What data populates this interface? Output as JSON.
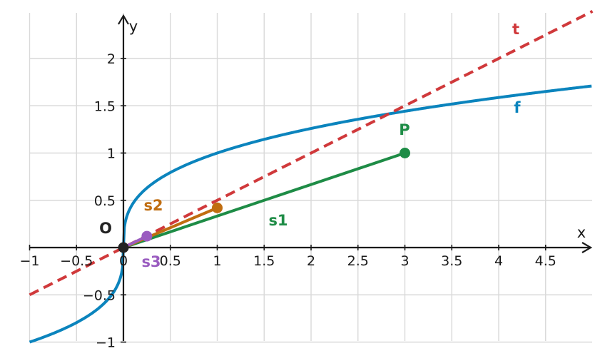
{
  "axes": {
    "x_label": "x",
    "y_label": "y",
    "x_ticks": [
      {
        "value": -1,
        "label": "−1"
      },
      {
        "value": -0.5,
        "label": "−0.5"
      },
      {
        "value": 0,
        "label": "0"
      },
      {
        "value": 0.5,
        "label": "0.5"
      },
      {
        "value": 1,
        "label": "1"
      },
      {
        "value": 1.5,
        "label": "1.5"
      },
      {
        "value": 2,
        "label": "2"
      },
      {
        "value": 2.5,
        "label": "2.5"
      },
      {
        "value": 3,
        "label": "3"
      },
      {
        "value": 3.5,
        "label": "3.5"
      },
      {
        "value": 4,
        "label": "4"
      },
      {
        "value": 4.5,
        "label": "4.5"
      }
    ],
    "y_ticks": [
      {
        "value": -1,
        "label": "−1"
      },
      {
        "value": -0.5,
        "label": "−0.5"
      },
      {
        "value": 0.5,
        "label": "0.5"
      },
      {
        "value": 1,
        "label": "1"
      },
      {
        "value": 1.5,
        "label": "1.5"
      },
      {
        "value": 2,
        "label": "2"
      }
    ],
    "x_range": [
      -1,
      5
    ],
    "y_range": [
      -1,
      2.5
    ],
    "grid": true
  },
  "curve_f": {
    "label": "f",
    "color": "#0b84bd",
    "function": "cube root of x"
  },
  "tangent_t": {
    "label": "t",
    "color": "#d0393b",
    "slope": 0.5,
    "intercept": 0,
    "style": "dashed"
  },
  "secants": [
    {
      "label": "s1",
      "color": "#1e8c46",
      "from": [
        0,
        0
      ],
      "to": [
        3,
        1
      ]
    },
    {
      "label": "s2",
      "color": "#c06d10",
      "from": [
        0,
        0
      ],
      "to": [
        1,
        0.42
      ]
    },
    {
      "label": "s3",
      "color": "#9a5cc0",
      "from": [
        0,
        0
      ],
      "to": [
        0.25,
        0.12
      ]
    }
  ],
  "points": [
    {
      "label": "O",
      "x": 0,
      "y": 0,
      "color": "#222222"
    },
    {
      "label": "P",
      "x": 3,
      "y": 1,
      "color": "#1e8c46"
    }
  ],
  "markers": [
    {
      "x": 1,
      "y": 0.42,
      "color": "#c06d10"
    },
    {
      "x": 0.25,
      "y": 0.12,
      "color": "#9a5cc0"
    }
  ]
}
